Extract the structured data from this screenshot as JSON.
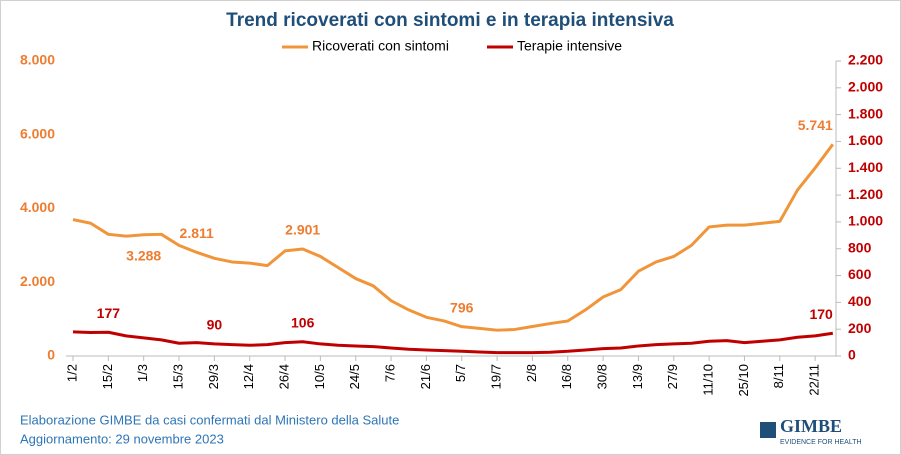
{
  "chart_data": {
    "type": "line",
    "title": "Trend ricoverati con sintomi e in terapia intensiva",
    "categories": [
      "1/2",
      null,
      "15/2",
      null,
      "1/3",
      null,
      "15/3",
      null,
      "29/3",
      null,
      "12/4",
      null,
      "26/4",
      null,
      "10/5",
      null,
      "24/5",
      null,
      "7/6",
      null,
      "21/6",
      null,
      "5/7",
      null,
      "19/7",
      null,
      "2/8",
      null,
      "16/8",
      null,
      "30/8",
      null,
      "13/9",
      null,
      "27/9",
      null,
      "11/10",
      null,
      "25/10",
      null,
      "8/11",
      null,
      "22/11",
      null
    ],
    "series": [
      {
        "name": "Ricoverati con sintomi",
        "color": "#f0953a",
        "axis": "y",
        "values": [
          3700,
          3600,
          3300,
          3250,
          3288,
          3300,
          3000,
          2811,
          2650,
          2550,
          2520,
          2450,
          2850,
          2901,
          2700,
          2400,
          2100,
          1900,
          1500,
          1250,
          1050,
          950,
          796,
          750,
          700,
          720,
          800,
          880,
          950,
          1250,
          1600,
          1800,
          2300,
          2550,
          2700,
          3000,
          3500,
          3550,
          3550,
          3600,
          3650,
          4500,
          5100,
          5741
        ],
        "value_labels": [
          null,
          null,
          null,
          null,
          "3.288",
          null,
          null,
          "2.811",
          null,
          null,
          null,
          null,
          null,
          "2.901",
          null,
          null,
          null,
          null,
          null,
          null,
          null,
          null,
          "796",
          null,
          null,
          null,
          null,
          null,
          null,
          null,
          null,
          null,
          null,
          null,
          null,
          null,
          null,
          null,
          null,
          null,
          null,
          null,
          null,
          "5.741"
        ]
      },
      {
        "name": "Terapie intensive",
        "color": "#c00000",
        "axis": "y2",
        "values": [
          180,
          175,
          177,
          150,
          135,
          120,
          95,
          100,
          90,
          85,
          80,
          85,
          100,
          106,
          90,
          80,
          75,
          70,
          60,
          50,
          45,
          40,
          35,
          30,
          25,
          25,
          25,
          28,
          35,
          45,
          55,
          60,
          75,
          85,
          90,
          95,
          110,
          115,
          100,
          110,
          120,
          140,
          150,
          170
        ],
        "value_labels": [
          null,
          null,
          "177",
          null,
          null,
          null,
          null,
          null,
          "90",
          null,
          null,
          null,
          null,
          "106",
          null,
          null,
          null,
          null,
          null,
          null,
          null,
          null,
          null,
          null,
          null,
          null,
          null,
          null,
          null,
          null,
          null,
          null,
          null,
          null,
          null,
          null,
          null,
          null,
          null,
          null,
          null,
          null,
          null,
          "170"
        ]
      }
    ],
    "ylim": [
      0,
      8000
    ],
    "yticks": [
      0,
      {
        "value": 2000,
        "label": "2.000"
      },
      {
        "value": 4000,
        "label": "4.000"
      },
      {
        "value": 6000,
        "label": "6.000"
      },
      {
        "value": 8000,
        "label": "8.000"
      }
    ],
    "y2lim": [
      0,
      2200
    ],
    "y2ticks": [
      0,
      200,
      400,
      600,
      800,
      {
        "value": 1000,
        "label": "1.000"
      },
      {
        "value": 1200,
        "label": "1.200"
      },
      {
        "value": 1400,
        "label": "1.400"
      },
      {
        "value": 1600,
        "label": "1.600"
      },
      {
        "value": 1800,
        "label": "1.800"
      },
      {
        "value": 2000,
        "label": "2.000"
      },
      {
        "value": 2200,
        "label": "2.200"
      }
    ],
    "legend": "top",
    "grid": false
  },
  "footer": {
    "source": "Elaborazione GIMBE da casi confermati dal Ministero della Salute",
    "updated": "Aggiornamento: 29 novembre 2023"
  },
  "logo": {
    "name": "GIMBE",
    "tagline": "EVIDENCE FOR HEALTH"
  }
}
